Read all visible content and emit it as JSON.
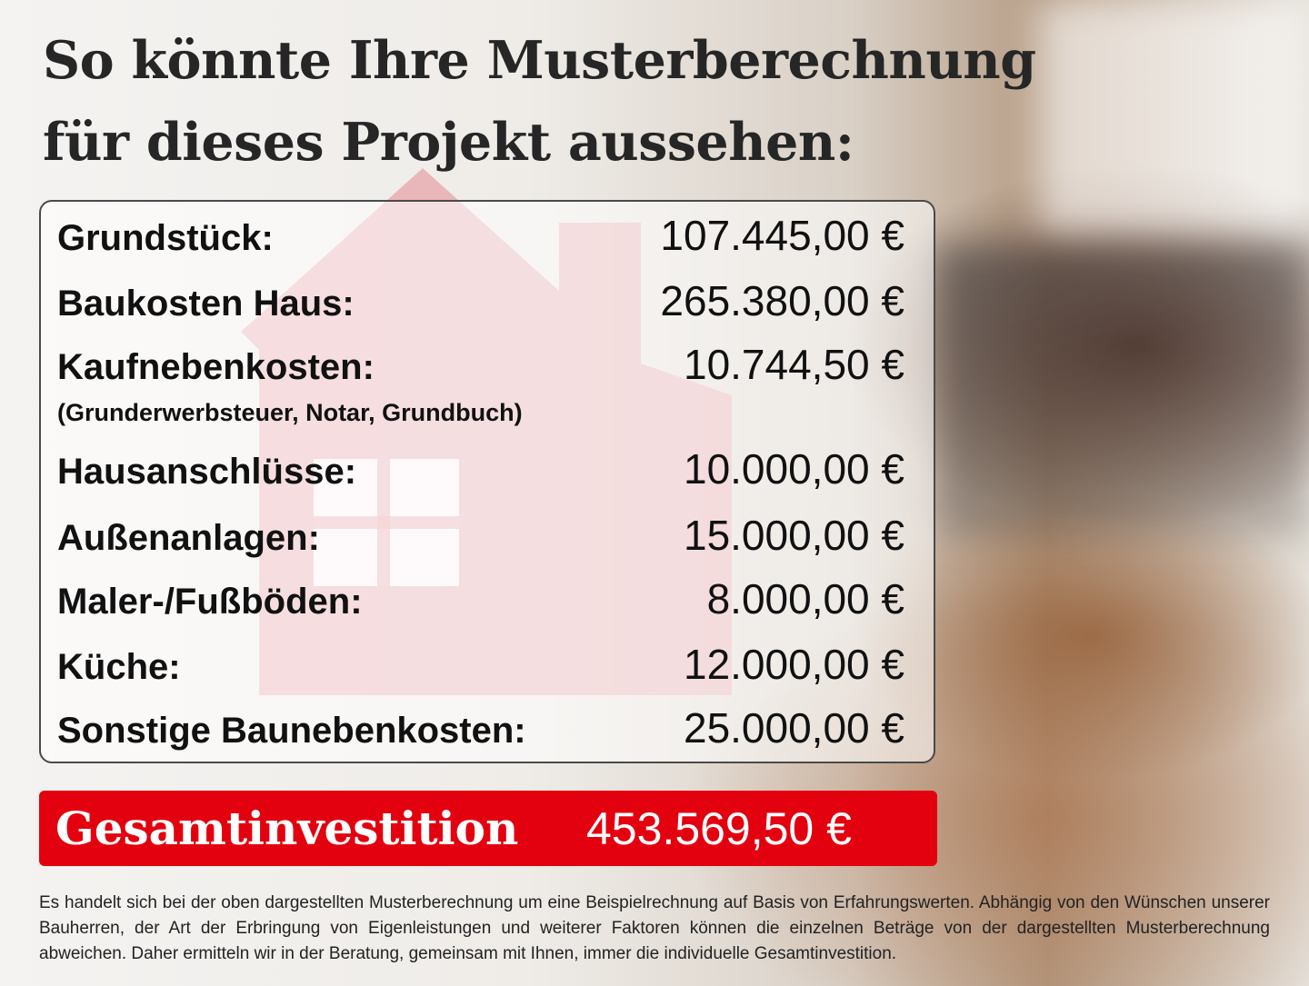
{
  "title": {
    "line1": "So könnte Ihre Musterberechnung",
    "line2": "für dieses Projekt aussehen:"
  },
  "items": [
    {
      "label": "Grundstück:",
      "value": "107.445,00 €"
    },
    {
      "label": "Baukosten Haus:",
      "value": "265.380,00 €"
    },
    {
      "label": "Kaufnebenkosten:",
      "value": "10.744,50 €",
      "note": "(Grunderwerbsteuer, Notar, Grundbuch)"
    },
    {
      "label": "Hausanschlüsse:",
      "value": "10.000,00 €"
    },
    {
      "label": "Außenanlagen:",
      "value": "15.000,00 €"
    },
    {
      "label": "Maler-/Fußböden:",
      "value": "8.000,00 €"
    },
    {
      "label": "Küche:",
      "value": "12.000,00 €"
    },
    {
      "label": "Sonstige Baunebenkosten:",
      "value": "25.000,00 €"
    }
  ],
  "total": {
    "label": "Gesamtinvestition",
    "value": "453.569,50 €"
  },
  "disclaimer": "Es handelt sich bei der oben dargestellten Musterberechnung um eine Beispielrechnung auf Basis von Erfahrungswerten. Abhängig von den Wünschen unserer Bauherren, der Art der Erbringung von Eigenleistungen und weiterer Faktoren können die einzelnen Beträge von der dargestellten Musterberechnung abweichen. Daher ermitteln wir in der Beratung, gemeinsam mit Ihnen, immer die individuelle Gesamtinvestition.",
  "colors": {
    "accent": "#e3000f",
    "house": "#e8a9ad"
  }
}
